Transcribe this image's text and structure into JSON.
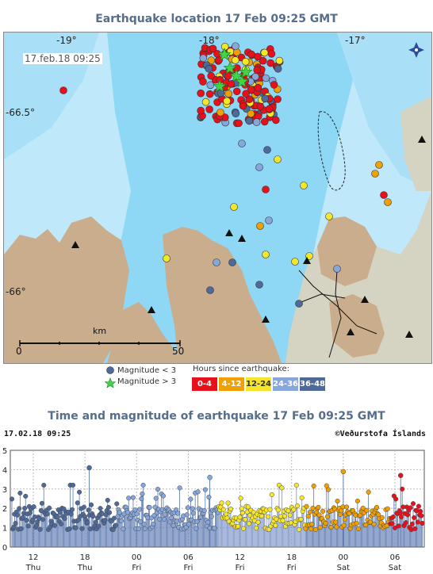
{
  "map": {
    "title": "Earthquake location   17 Feb 09:25 GMT",
    "date_stamp": "17.feb.18  09:25",
    "lon_labels": [
      "-19°",
      "-18°",
      "-17°"
    ],
    "lat_labels": [
      "-66.5°",
      "-66°"
    ],
    "scale": {
      "unit": "km",
      "start": "0",
      "end": "50"
    },
    "legend": {
      "mag_small": "Magnitude < 3",
      "mag_large": "Magnitude > 3",
      "hours_title": "Hours since earthquake:",
      "hours": [
        {
          "label": "0-4",
          "color": "#e8101a"
        },
        {
          "label": "4-12",
          "color": "#f0a000"
        },
        {
          "label": "12-24",
          "color": "#f5e62a"
        },
        {
          "label": "24-36",
          "color": "#86a6dc"
        },
        {
          "label": "36-48",
          "color": "#4d6a9a"
        }
      ]
    },
    "colors": {
      "sea": "#8fd8f5",
      "land": "#c9ad8c",
      "lowland": "#d5d3c2"
    },
    "compass_icon": "compass-icon"
  },
  "chart": {
    "title": "Time and magnitude of earthquake   17 Feb 09:25 GMT",
    "timestamp": "17.02.18 09:25",
    "credit": "©Veðurstofa Íslands"
  },
  "chart_data": {
    "type": "scatter",
    "title": "Time and magnitude of earthquake   17 Feb 09:25 GMT",
    "xlabel": "",
    "ylabel": "",
    "ylim": [
      0,
      5
    ],
    "yticks": [
      "0",
      "1",
      "2",
      "3",
      "4",
      "5"
    ],
    "xticks": [
      {
        "hour": "12",
        "day": "Thu"
      },
      {
        "hour": "18",
        "day": "Thu"
      },
      {
        "hour": "00",
        "day": "Fri"
      },
      {
        "hour": "06",
        "day": "Fri"
      },
      {
        "hour": "12",
        "day": "Fri"
      },
      {
        "hour": "18",
        "day": "Fri"
      },
      {
        "hour": "00",
        "day": "Sat"
      },
      {
        "hour": "06",
        "day": "Sat"
      }
    ],
    "grid": true,
    "series_colors": [
      "#4d6a9a",
      "#86a6dc",
      "#f5e62a",
      "#f0a000",
      "#e8101a"
    ],
    "notable_events": [
      {
        "time": "Thu 18:30",
        "magnitude": 4.1
      },
      {
        "time": "Fri 08:30",
        "magnitude": 3.6
      },
      {
        "time": "Sat 00:00",
        "magnitude": 3.9
      },
      {
        "time": "Sat 06:40",
        "magnitude": 3.7
      }
    ]
  }
}
